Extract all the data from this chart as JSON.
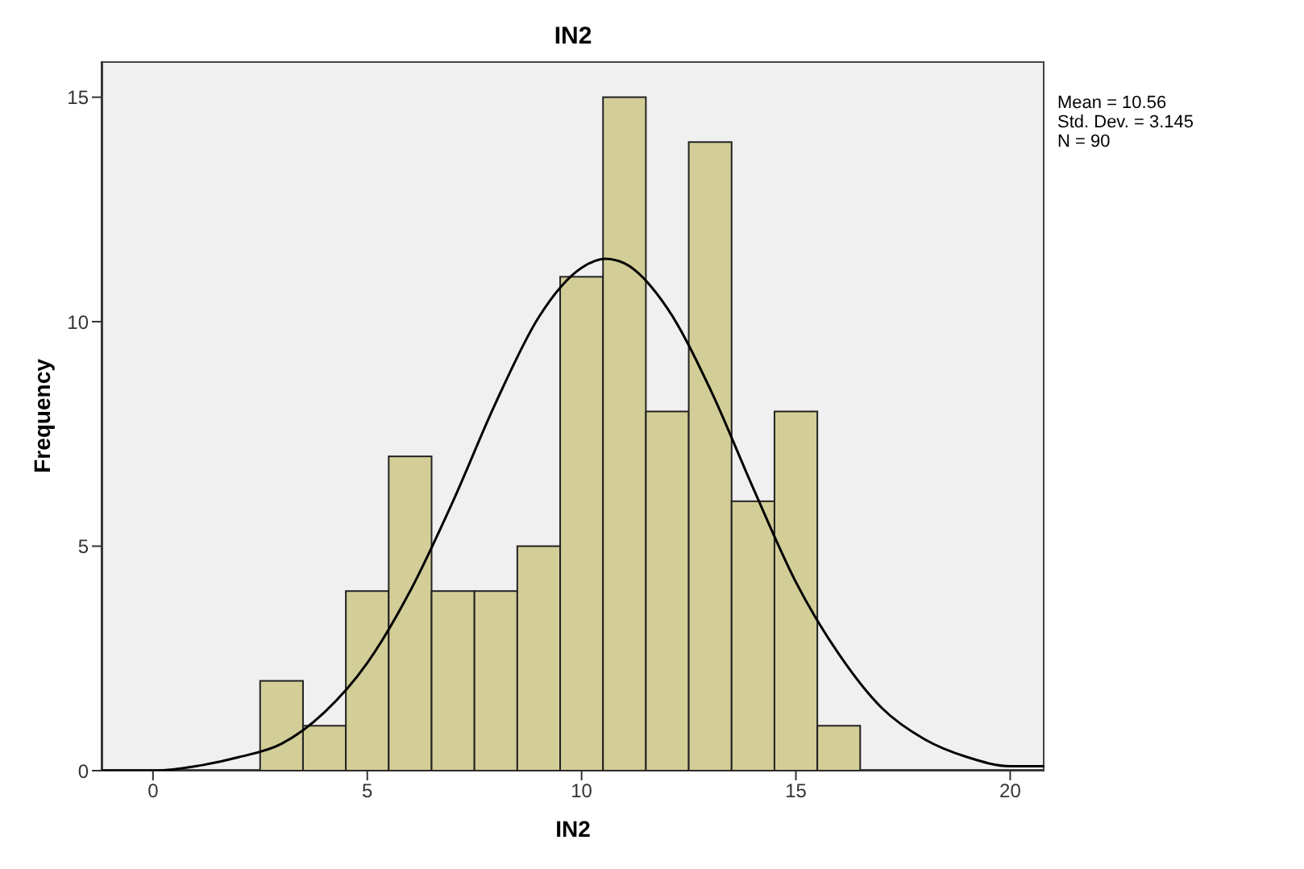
{
  "chart_data": {
    "type": "histogram",
    "title": "IN2",
    "xlabel": "IN2",
    "ylabel": "Frequency",
    "bins": [
      2.5,
      3.5,
      4.5,
      5.5,
      6.5,
      7.5,
      8.5,
      9.5,
      10.5,
      11.5,
      12.5,
      13.5,
      14.5,
      15.5,
      16.5
    ],
    "values": [
      2,
      1,
      4,
      7,
      4,
      4,
      5,
      11,
      15,
      8,
      14,
      6,
      8,
      1
    ],
    "color": "#d3ce98",
    "series": [
      {
        "type": "line",
        "color": "#000000",
        "x": [
          -1.2,
          0,
          1,
          2,
          3,
          4,
          5,
          6,
          7,
          8,
          9,
          10,
          10.56,
          11,
          12,
          13,
          14,
          15,
          16,
          17,
          18,
          19,
          20,
          20.8
        ],
        "values": [
          0.0,
          0.0,
          0.1,
          0.3,
          0.6,
          1.3,
          2.4,
          4.0,
          6.0,
          8.2,
          10.1,
          11.2,
          11.4,
          11.3,
          10.3,
          8.5,
          6.3,
          4.2,
          2.6,
          1.4,
          0.7,
          0.3,
          0.1,
          0.1
        ]
      }
    ],
    "xlim": [
      -1.2,
      20.8
    ],
    "xticks": [
      0,
      5,
      10,
      15,
      20
    ],
    "ylim": [
      0,
      15.8
    ],
    "yticks": [
      0,
      5,
      10,
      15
    ],
    "grid": false,
    "annotations": [
      "Mean = 10.56",
      "Std. Dev. = 3.145",
      "N = 90"
    ]
  }
}
